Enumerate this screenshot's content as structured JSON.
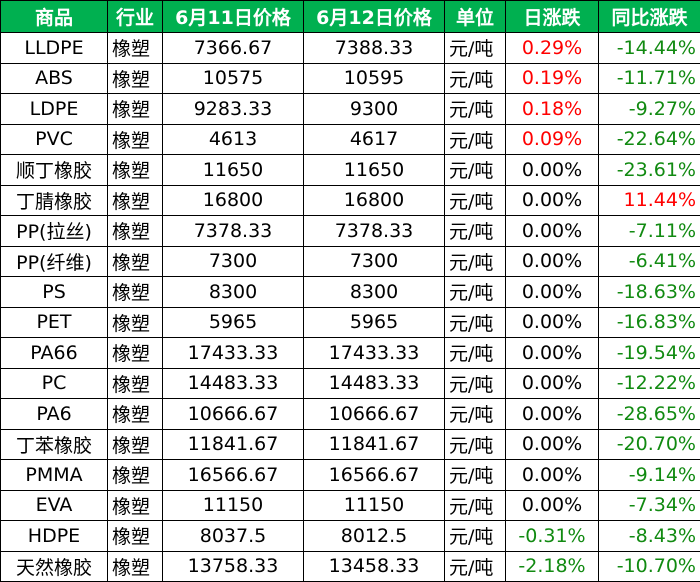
{
  "table": {
    "header": [
      "商品",
      "行业",
      "6月11日价格",
      "6月12日价格",
      "单位",
      "日涨跌",
      "同比涨跌"
    ],
    "rows": [
      [
        "LLDPE",
        "橡塑",
        "7366.67",
        "7388.33",
        "元/吨",
        "0.29%",
        "-14.44%"
      ],
      [
        "ABS",
        "橡塑",
        "10575",
        "10595",
        "元/吨",
        "0.19%",
        "-11.71%"
      ],
      [
        "LDPE",
        "橡塑",
        "9283.33",
        "9300",
        "元/吨",
        "0.18%",
        "-9.27%"
      ],
      [
        "PVC",
        "橡塑",
        "4613",
        "4617",
        "元/吨",
        "0.09%",
        "-22.64%"
      ],
      [
        "顺丁橡胶",
        "橡塑",
        "11650",
        "11650",
        "元/吨",
        "0.00%",
        "-23.61%"
      ],
      [
        "丁腈橡胶",
        "橡塑",
        "16800",
        "16800",
        "元/吨",
        "0.00%",
        "11.44%"
      ],
      [
        "PP(拉丝)",
        "橡塑",
        "7378.33",
        "7378.33",
        "元/吨",
        "0.00%",
        "-7.11%"
      ],
      [
        "PP(纤维)",
        "橡塑",
        "7300",
        "7300",
        "元/吨",
        "0.00%",
        "-6.41%"
      ],
      [
        "PS",
        "橡塑",
        "8300",
        "8300",
        "元/吨",
        "0.00%",
        "-18.63%"
      ],
      [
        "PET",
        "橡塑",
        "5965",
        "5965",
        "元/吨",
        "0.00%",
        "-16.83%"
      ],
      [
        "PA66",
        "橡塑",
        "17433.33",
        "17433.33",
        "元/吨",
        "0.00%",
        "-19.54%"
      ],
      [
        "PC",
        "橡塑",
        "14483.33",
        "14483.33",
        "元/吨",
        "0.00%",
        "-12.22%"
      ],
      [
        "PA6",
        "橡塑",
        "10666.67",
        "10666.67",
        "元/吨",
        "0.00%",
        "-28.65%"
      ],
      [
        "丁苯橡胶",
        "橡塑",
        "11841.67",
        "11841.67",
        "元/吨",
        "0.00%",
        "-20.70%"
      ],
      [
        "PMMA",
        "橡塑",
        "16566.67",
        "16566.67",
        "元/吨",
        "0.00%",
        "-9.14%"
      ],
      [
        "EVA",
        "橡塑",
        "11150",
        "11150",
        "元/吨",
        "0.00%",
        "-7.34%"
      ],
      [
        "HDPE",
        "橡塑",
        "8037.5",
        "8012.5",
        "元/吨",
        "-0.31%",
        "-8.43%"
      ],
      [
        "天然橡胶",
        "橡塑",
        "13758.33",
        "13458.33",
        "元/吨",
        "-2.18%",
        "-10.70%"
      ]
    ]
  }
}
